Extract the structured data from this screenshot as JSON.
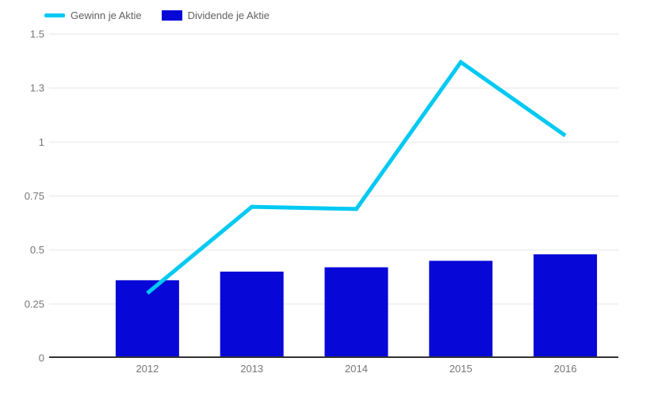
{
  "legend": {
    "items": [
      {
        "label": "Gewinn je Aktie",
        "color": "#00c9f2",
        "swatch": "line-swatch"
      },
      {
        "label": "Dividende je Aktie",
        "color": "#0707d8",
        "swatch": "bar-swatch"
      }
    ]
  },
  "chart_data": {
    "type": "combo",
    "title": "",
    "xlabel": "",
    "ylabel": "",
    "categories": [
      "2012",
      "2013",
      "2014",
      "2015",
      "2016"
    ],
    "series": [
      {
        "name": "Gewinn je Aktie",
        "type": "line",
        "color": "#00c9f2",
        "values": [
          0.3,
          0.7,
          0.69,
          1.37,
          1.03
        ]
      },
      {
        "name": "Dividende je Aktie",
        "type": "bar",
        "color": "#0707d8",
        "values": [
          0.36,
          0.4,
          0.42,
          0.45,
          0.48
        ]
      }
    ],
    "ylim": [
      0,
      1.5
    ],
    "yticks": [
      {
        "value": 0,
        "label": "0"
      },
      {
        "value": 0.25,
        "label": "0.25"
      },
      {
        "value": 0.5,
        "label": "0.5"
      },
      {
        "value": 0.75,
        "label": "0.75"
      },
      {
        "value": 1,
        "label": "1"
      },
      {
        "value": 1.25,
        "label": "1.3"
      },
      {
        "value": 1.5,
        "label": "1.5"
      }
    ],
    "grid": true,
    "legend_position": "top",
    "background_color": "#ffffff",
    "gridline_color": "#e6e6e6",
    "baseline_color": "#333333",
    "axis_text_color": "#757575"
  }
}
